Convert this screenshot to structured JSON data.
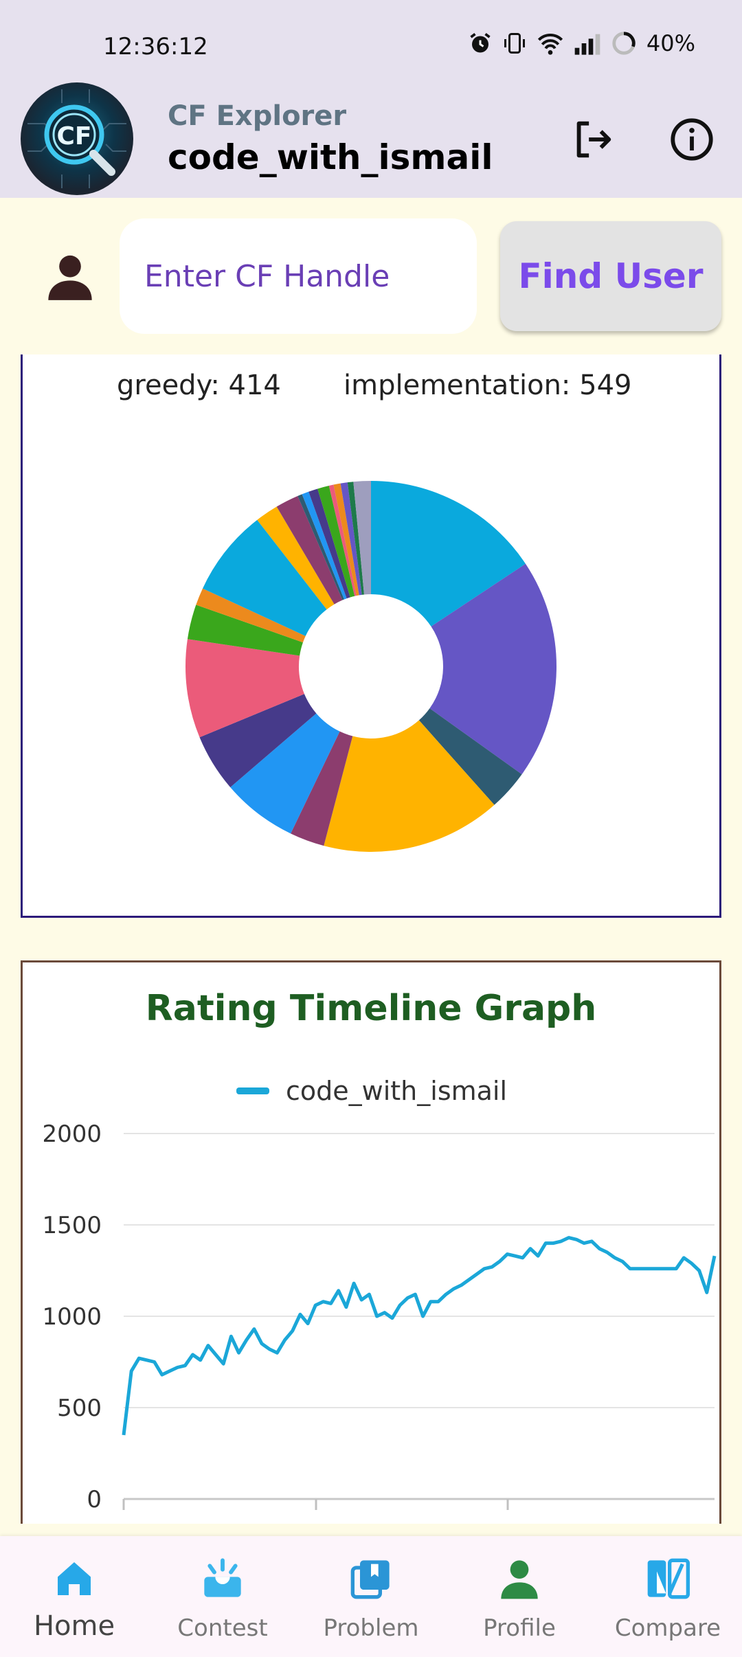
{
  "status_bar": {
    "time": "12:36:12",
    "battery": "40%",
    "icons": [
      "alarm-icon",
      "vibrate-icon",
      "wifi-icon",
      "signal-icon",
      "battery-icon"
    ]
  },
  "header": {
    "app_title": "CF Explorer",
    "user_title": "code_with_ismail",
    "logo_text": "CF",
    "icons": [
      "logout-icon",
      "info-icon"
    ]
  },
  "search": {
    "placeholder": "Enter CF Handle",
    "value": "",
    "button_label": "Find User"
  },
  "tags_legend": [
    {
      "label": "greedy: 414"
    },
    {
      "label": "implementation: 549"
    }
  ],
  "chart_data": [
    {
      "type": "pie",
      "categories": [
        "",
        "",
        "",
        "",
        "",
        "",
        "",
        "",
        "",
        "",
        "",
        "",
        "",
        "",
        "",
        "",
        "",
        "",
        "",
        "",
        "",
        ""
      ],
      "values": [
        15.5,
        19.0,
        3.5,
        15.5,
        3.0,
        6.5,
        5.0,
        8.5,
        3.0,
        1.5,
        7.5,
        2.0,
        2.0,
        0.4,
        0.6,
        0.8,
        1.0,
        0.4,
        0.6,
        0.6,
        0.5,
        1.5
      ],
      "colors": [
        "#0aa9dd",
        "#6556c5",
        "#2e5b72",
        "#ffb300",
        "#8c3d6e",
        "#2196f3",
        "#463a8a",
        "#eb5b7a",
        "#3aa71c",
        "#ec8a1d",
        "#0aa9dd",
        "#ffb300",
        "#8c3d6e",
        "#2e5b72",
        "#2196f3",
        "#463a8a",
        "#3aa71c",
        "#eb5b7a",
        "#ec8a1d",
        "#6556c5",
        "#1e7a4a",
        "#9e9ebe"
      ],
      "donut": true,
      "title": "",
      "legend_entries": [
        "greedy: 414",
        "implementation: 549"
      ]
    },
    {
      "type": "line",
      "title": "Rating Timeline Graph",
      "xlabel": "",
      "ylabel": "",
      "ylim": [
        0,
        2000
      ],
      "yticks": [
        0,
        500,
        1000,
        1500,
        2000
      ],
      "grid": true,
      "legend_placement": "top",
      "series": [
        {
          "name": "code_with_ismail",
          "color": "#1ba7d8",
          "x": [
            0,
            1,
            2,
            3,
            4,
            5,
            6,
            7,
            8,
            9,
            10,
            11,
            12,
            13,
            14,
            15,
            16,
            17,
            18,
            19,
            20,
            21,
            22,
            23,
            24,
            25,
            26,
            27,
            28,
            29,
            30,
            31,
            32,
            33,
            34,
            35,
            36,
            37,
            38,
            39,
            40,
            41,
            42,
            43,
            44,
            45,
            46,
            47,
            48,
            49,
            50,
            51,
            52,
            53,
            54,
            55,
            56,
            57,
            58,
            59,
            60,
            61,
            62,
            63,
            64,
            65,
            66,
            67,
            68,
            69,
            70,
            71,
            72,
            73,
            74,
            75,
            76,
            77
          ],
          "values": [
            350,
            700,
            770,
            760,
            750,
            680,
            700,
            720,
            730,
            790,
            760,
            840,
            790,
            740,
            890,
            800,
            870,
            930,
            850,
            820,
            800,
            870,
            920,
            1010,
            960,
            1060,
            1080,
            1070,
            1140,
            1050,
            1180,
            1090,
            1120,
            1000,
            1020,
            990,
            1060,
            1100,
            1120,
            1000,
            1080,
            1080,
            1120,
            1150,
            1170,
            1200,
            1230,
            1260,
            1270,
            1300,
            1340,
            1330,
            1320,
            1370,
            1330,
            1400,
            1400,
            1410,
            1430,
            1420,
            1400,
            1410,
            1370,
            1350,
            1320,
            1300,
            1260,
            1260,
            1260,
            1260,
            1260,
            1260,
            1260,
            1320,
            1290,
            1250,
            1130,
            1330
          ]
        }
      ]
    }
  ],
  "nav": [
    {
      "label": "Home",
      "icon": "home-icon",
      "active": true
    },
    {
      "label": "Contest",
      "icon": "contest-icon",
      "active": false
    },
    {
      "label": "Problem",
      "icon": "problem-icon",
      "active": false
    },
    {
      "label": "Profile",
      "icon": "profile-icon",
      "active": false
    },
    {
      "label": "Compare",
      "icon": "compare-icon",
      "active": false
    }
  ]
}
